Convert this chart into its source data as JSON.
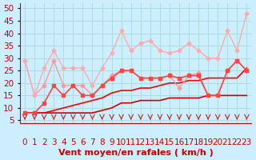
{
  "title": "",
  "xlabel": "Vent moyen/en rafales ( km/h )",
  "ylabel": "",
  "bg_color": "#cceeff",
  "grid_color": "#aadddd",
  "xlim": [
    -0.5,
    23.5
  ],
  "ylim": [
    4,
    52
  ],
  "yticks": [
    5,
    10,
    15,
    20,
    25,
    30,
    35,
    40,
    45,
    50
  ],
  "xticks": [
    0,
    1,
    2,
    3,
    4,
    5,
    6,
    7,
    8,
    9,
    10,
    11,
    12,
    13,
    14,
    15,
    16,
    17,
    18,
    19,
    20,
    21,
    22,
    23
  ],
  "lines": [
    {
      "x": [
        0,
        1,
        2,
        3,
        4,
        5,
        6,
        7,
        8,
        9,
        10,
        11,
        12,
        13,
        14,
        15,
        16,
        17,
        18,
        19,
        20,
        21,
        22,
        23
      ],
      "y": [
        29,
        15,
        19,
        29,
        19,
        19,
        19,
        15,
        19,
        23,
        25,
        25,
        22,
        22,
        22,
        23,
        18,
        23,
        24,
        15,
        15,
        25,
        29,
        25
      ],
      "color": "#ff9999",
      "lw": 1.0,
      "marker": "D",
      "ms": 2.5,
      "zorder": 3
    },
    {
      "x": [
        0,
        1,
        2,
        3,
        4,
        5,
        6,
        7,
        8,
        9,
        10,
        11,
        12,
        13,
        14,
        15,
        16,
        17,
        18,
        19,
        20,
        21,
        22,
        23
      ],
      "y": [
        29,
        15,
        26,
        33,
        26,
        26,
        26,
        19,
        26,
        32,
        41,
        33,
        36,
        37,
        33,
        32,
        33,
        36,
        33,
        30,
        30,
        41,
        33,
        48
      ],
      "color": "#ffaaaa",
      "lw": 1.0,
      "marker": "D",
      "ms": 2.5,
      "zorder": 3
    },
    {
      "x": [
        0,
        1,
        2,
        3,
        4,
        5,
        6,
        7,
        8,
        9,
        10,
        11,
        12,
        13,
        14,
        15,
        16,
        17,
        18,
        19,
        20,
        21,
        22,
        23
      ],
      "y": [
        8,
        8,
        12,
        19,
        15,
        19,
        15,
        15,
        19,
        22,
        25,
        25,
        22,
        22,
        22,
        23,
        22,
        23,
        23,
        15,
        15,
        25,
        29,
        25
      ],
      "color": "#ff4444",
      "lw": 1.2,
      "marker": "s",
      "ms": 2.5,
      "zorder": 4
    },
    {
      "x": [
        0,
        1,
        2,
        3,
        4,
        5,
        6,
        7,
        8,
        9,
        10,
        11,
        12,
        13,
        14,
        15,
        16,
        17,
        18,
        19,
        20,
        21,
        22,
        23
      ],
      "y": [
        8,
        8,
        8,
        8,
        8,
        8,
        8,
        8,
        9,
        10,
        12,
        12,
        13,
        13,
        13,
        14,
        14,
        14,
        14,
        15,
        15,
        15,
        15,
        15
      ],
      "color": "#cc0000",
      "lw": 1.2,
      "marker": null,
      "ms": 0,
      "zorder": 2
    },
    {
      "x": [
        0,
        1,
        2,
        3,
        4,
        5,
        6,
        7,
        8,
        9,
        10,
        11,
        12,
        13,
        14,
        15,
        16,
        17,
        18,
        19,
        20,
        21,
        22,
        23
      ],
      "y": [
        8,
        8,
        8,
        9,
        10,
        11,
        12,
        13,
        14,
        16,
        17,
        17,
        18,
        18,
        19,
        20,
        20,
        21,
        21,
        22,
        22,
        22,
        22,
        26
      ],
      "color": "#ff0000",
      "lw": 1.2,
      "marker": null,
      "ms": 0,
      "zorder": 2
    }
  ],
  "arrow_color": "#cc2222",
  "label_color": "#cc0000",
  "label_fontsize": 7.5,
  "axis_label_fontsize": 8
}
